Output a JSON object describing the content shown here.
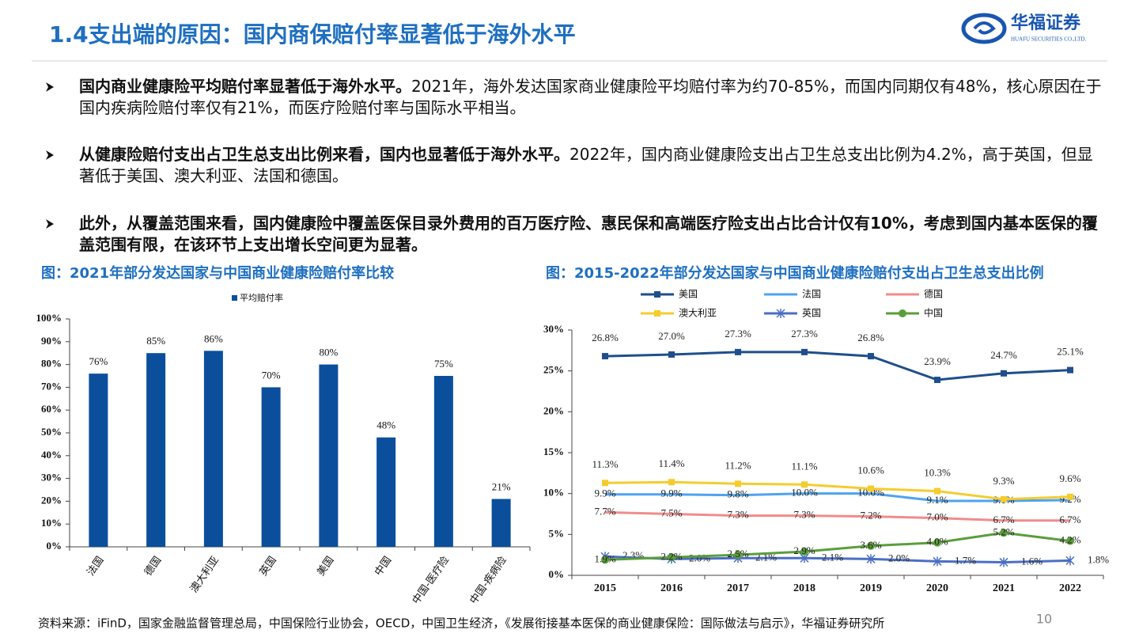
{
  "header": {
    "title": "1.4支出端的原因：国内商保赔付率显著低于海外水平",
    "logo_name": "华福证券",
    "logo_en": "HUAFU SECURITIES CO.,LTD."
  },
  "bullets": [
    {
      "bold": "国内商业健康险平均赔付率显著低于海外水平。",
      "text": "2021年，海外发达国家商业健康险平均赔付率为约70-85%，而国内同期仅有48%，核心原因在于国内疾病险赔付率仅有21%，而医疗险赔付率与国际水平相当。"
    },
    {
      "bold": "从健康险赔付支出占卫生总支出比例来看，国内也显著低于海外水平。",
      "text": "2022年，国内商业健康险支出占卫生总支出比例为4.2%，高于英国，但显著低于美国、澳大利亚、法国和德国。"
    },
    {
      "bold": "此外，从覆盖范围来看，国内健康险中覆盖医保目录外费用的百万医疗险、惠民保和高端医疗险支出占比合计仅有10%，考虑到国内基本医保的覆盖范围有限，在该环节上支出增长空间更为显著。"
    }
  ],
  "chart_data": [
    {
      "type": "bar",
      "title": "图：2021年部分发达国家与中国商业健康险赔付率比较",
      "categories": [
        "法国",
        "德国",
        "澳大利亚",
        "英国",
        "美国",
        "中国",
        "中国-医疗险",
        "中国-疾病险"
      ],
      "series": [
        {
          "name": "平均赔付率",
          "color": "#0b4f9c",
          "values": [
            76,
            85,
            86,
            70,
            80,
            48,
            75,
            21
          ],
          "value_labels": [
            "76%",
            "85%",
            "86%",
            "70%",
            "80%",
            "48%",
            "75%",
            "21%"
          ]
        }
      ],
      "ylim": [
        0,
        100
      ],
      "yticks": [
        {
          "value": 0,
          "label": "0%"
        },
        {
          "value": 10,
          "label": "10%"
        },
        {
          "value": 20,
          "label": "20%"
        },
        {
          "value": 30,
          "label": "30%"
        },
        {
          "value": 40,
          "label": "40%"
        },
        {
          "value": 50,
          "label": "50%"
        },
        {
          "value": 60,
          "label": "60%"
        },
        {
          "value": 70,
          "label": "70%"
        },
        {
          "value": 80,
          "label": "80%"
        },
        {
          "value": 90,
          "label": "90%"
        },
        {
          "value": 100,
          "label": "100%"
        }
      ],
      "grid": false
    },
    {
      "type": "line",
      "title": "图：2015-2022年部分发达国家与中国商业健康险赔付支出占卫生总支出比例",
      "categories": [
        "2015",
        "2016",
        "2017",
        "2018",
        "2019",
        "2020",
        "2021",
        "2022"
      ],
      "series": [
        {
          "name": "美国",
          "color": "#1f4e8c",
          "marker": "square",
          "values": [
            26.8,
            27.0,
            27.3,
            27.3,
            26.8,
            23.9,
            24.7,
            25.1
          ],
          "value_labels": [
            "26.8%",
            "27.0%",
            "27.3%",
            "27.3%",
            "26.8%",
            "23.9%",
            "24.7%",
            "25.1%"
          ]
        },
        {
          "name": "法国",
          "color": "#4da3f0",
          "marker": "none",
          "values": [
            9.9,
            9.9,
            9.8,
            10.0,
            10.0,
            9.1,
            9.1,
            9.2
          ],
          "value_labels": [
            "9.9%",
            "9.9%",
            "9.8%",
            "10.0%",
            "10.0%",
            "9.1%",
            "9.1%",
            "9.2%"
          ]
        },
        {
          "name": "德国",
          "color": "#f08c8c",
          "marker": "none",
          "values": [
            7.7,
            7.5,
            7.3,
            7.3,
            7.2,
            7.0,
            6.7,
            6.7
          ],
          "value_labels": [
            "7.7%",
            "7.5%",
            "7.3%",
            "7.3%",
            "7.2%",
            "7.0%",
            "6.7%",
            "6.7%"
          ]
        },
        {
          "name": "澳大利亚",
          "color": "#f5cc2e",
          "marker": "square",
          "values": [
            11.3,
            11.4,
            11.2,
            11.1,
            10.6,
            10.3,
            9.3,
            9.6
          ],
          "value_labels": [
            "11.3%",
            "11.4%",
            "11.2%",
            "11.1%",
            "10.6%",
            "10.3%",
            "9.3%",
            "9.6%"
          ]
        },
        {
          "name": "英国",
          "color": "#4a6fc4",
          "marker": "x",
          "values": [
            2.3,
            2.0,
            2.1,
            2.1,
            2.0,
            1.7,
            1.6,
            1.8
          ],
          "value_labels": [
            "2.3%",
            "2.0%",
            "2.1%",
            "2.1%",
            "2.0%",
            "1.7%",
            "1.6%",
            "1.8%"
          ]
        },
        {
          "name": "中国",
          "color": "#5a9e3a",
          "marker": "circle",
          "values": [
            1.9,
            2.2,
            2.5,
            2.9,
            3.6,
            4.0,
            5.2,
            4.2
          ],
          "value_labels": [
            "1.9%",
            "2.2%",
            "2.5%",
            "2.9%",
            "3.6%",
            "4.0%",
            "5.2%",
            "4.2%"
          ]
        }
      ],
      "ylim": [
        0,
        30
      ],
      "yticks": [
        {
          "value": 0,
          "label": "0%"
        },
        {
          "value": 5,
          "label": "5%"
        },
        {
          "value": 10,
          "label": "10%"
        },
        {
          "value": 15,
          "label": "15%"
        },
        {
          "value": 20,
          "label": "20%"
        },
        {
          "value": 25,
          "label": "25%"
        },
        {
          "value": 30,
          "label": "30%"
        }
      ],
      "grid": false
    }
  ],
  "footer": {
    "source": "资料来源：iFinD，国家金融监督管理总局，中国保险行业协会，OECD，中国卫生经济，《发展衔接基本医保的商业健康保险：国际做法与启示》，华福证券研究所",
    "page": "10"
  }
}
